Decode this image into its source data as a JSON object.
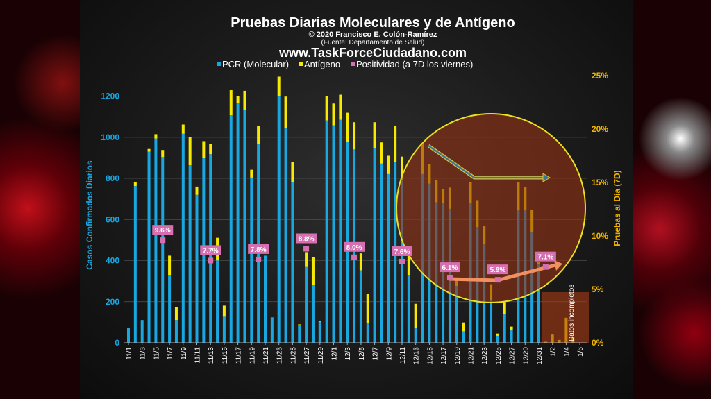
{
  "chart_data": {
    "type": "bar",
    "stacked": true,
    "title": "Pruebas Diarias Moleculares y de Antígeno",
    "subtitle": "© 2020 Francisco E. Colón-Ramírez",
    "source": "(Fuente: Departamento de Salud)",
    "website": "www.TaskForceCiudadano.com",
    "ylabel": "Casos Confirmados Diarios",
    "y2label": "Pruebas al Día (7D)",
    "ylim": [
      0,
      1300
    ],
    "y2lim": [
      0,
      25
    ],
    "yticks": [
      "0",
      "200",
      "400",
      "600",
      "800",
      "1000",
      "1200"
    ],
    "y2ticks": [
      "0%",
      "5%",
      "10%",
      "15%",
      "20%",
      "25%"
    ],
    "grid": true,
    "legend_placement": "top",
    "legend": [
      {
        "label": "PCR (Molecular)",
        "color": "#18a7e0"
      },
      {
        "label": "Antígeno",
        "color": "#f5ea00"
      },
      {
        "label": "Positividad (a 7D los viernes)",
        "color": "#d56fb0"
      }
    ],
    "categories": [
      "11/1",
      "11/2",
      "11/3",
      "11/4",
      "11/5",
      "11/6",
      "11/7",
      "11/8",
      "11/9",
      "11/10",
      "11/11",
      "11/12",
      "11/13",
      "11/14",
      "11/15",
      "11/16",
      "11/17",
      "11/18",
      "11/19",
      "11/20",
      "11/21",
      "11/22",
      "11/23",
      "11/24",
      "11/25",
      "11/26",
      "11/27",
      "11/28",
      "11/29",
      "11/30",
      "12/1",
      "12/2",
      "12/3",
      "12/4",
      "12/5",
      "12/6",
      "12/7",
      "12/8",
      "12/9",
      "12/10",
      "12/11",
      "12/12",
      "12/13",
      "12/14",
      "12/15",
      "12/16",
      "12/17",
      "12/18",
      "12/19",
      "12/20",
      "12/21",
      "12/22",
      "12/23",
      "12/24",
      "12/25",
      "12/26",
      "12/27",
      "12/28",
      "12/29",
      "12/30",
      "12/31",
      "1/1",
      "1/2",
      "1/3",
      "1/4",
      "1/5",
      "1/6"
    ],
    "xtick_labels": [
      "11/1",
      "11/3",
      "11/5",
      "11/7",
      "11/9",
      "11/11",
      "11/13",
      "11/15",
      "11/17",
      "11/19",
      "11/21",
      "11/23",
      "11/25",
      "11/27",
      "11/29",
      "12/1",
      "12/3",
      "12/5",
      "12/7",
      "12/9",
      "12/11",
      "12/13",
      "12/15",
      "12/17",
      "12/19",
      "12/21",
      "12/23",
      "12/25",
      "12/27",
      "12/29",
      "12/31",
      "1/2",
      "1/4",
      "1/6"
    ],
    "series": [
      {
        "name": "PCR (Molecular)",
        "values": [
          73,
          763,
          111,
          930,
          994,
          904,
          328,
          111,
          1017,
          864,
          720,
          898,
          918,
          401,
          127,
          1107,
          1167,
          1132,
          804,
          966,
          424,
          124,
          1201,
          1045,
          780,
          88,
          369,
          282,
          102,
          1082,
          1058,
          1085,
          977,
          941,
          353,
          96,
          947,
          872,
          821,
          881,
          791,
          330,
          73,
          821,
          774,
          684,
          680,
          652,
          277,
          56,
          680,
          563,
          479,
          207,
          34,
          141,
          62,
          644,
          644,
          539,
          384,
          0,
          0,
          0,
          0,
          0,
          0
        ]
      },
      {
        "name": "Antígeno",
        "values": [
          0,
          17,
          0,
          13,
          21,
          34,
          96,
          64,
          45,
          136,
          40,
          83,
          50,
          110,
          54,
          122,
          34,
          94,
          38,
          90,
          0,
          0,
          94,
          153,
          101,
          2,
          72,
          136,
          5,
          119,
          106,
          122,
          142,
          132,
          82,
          141,
          126,
          103,
          89,
          173,
          115,
          100,
          117,
          145,
          96,
          109,
          68,
          103,
          28,
          43,
          100,
          131,
          88,
          78,
          11,
          57,
          17,
          138,
          113,
          107,
          8,
          5,
          40,
          14,
          122,
          30,
          0
        ]
      }
    ],
    "positivity": [
      {
        "date": "11/6",
        "value": 9.6,
        "label": "9.6%"
      },
      {
        "date": "11/13",
        "value": 7.7,
        "label": "7.7%"
      },
      {
        "date": "11/20",
        "value": 7.8,
        "label": "7.8%"
      },
      {
        "date": "11/27",
        "value": 8.8,
        "label": "8.8%"
      },
      {
        "date": "12/4",
        "value": 8.0,
        "label": "8.0%"
      },
      {
        "date": "12/11",
        "value": 7.6,
        "label": "7.6%"
      },
      {
        "date": "12/18",
        "value": 6.1,
        "label": "6.1%"
      },
      {
        "date": "12/25",
        "value": 5.9,
        "label": "5.9%"
      },
      {
        "date": "1/1",
        "value": 7.1,
        "label": "7.1%"
      }
    ],
    "annotations": {
      "incomplete_label": "Datos incompletos",
      "incomplete_range": [
        "1/1",
        "1/6"
      ]
    },
    "colors": {
      "pcr": "#18a7e0",
      "antigen": "#f5ea00",
      "positivity": "#d56fb0",
      "circle": "#e8e020",
      "right_axis": "#f0b400"
    }
  }
}
